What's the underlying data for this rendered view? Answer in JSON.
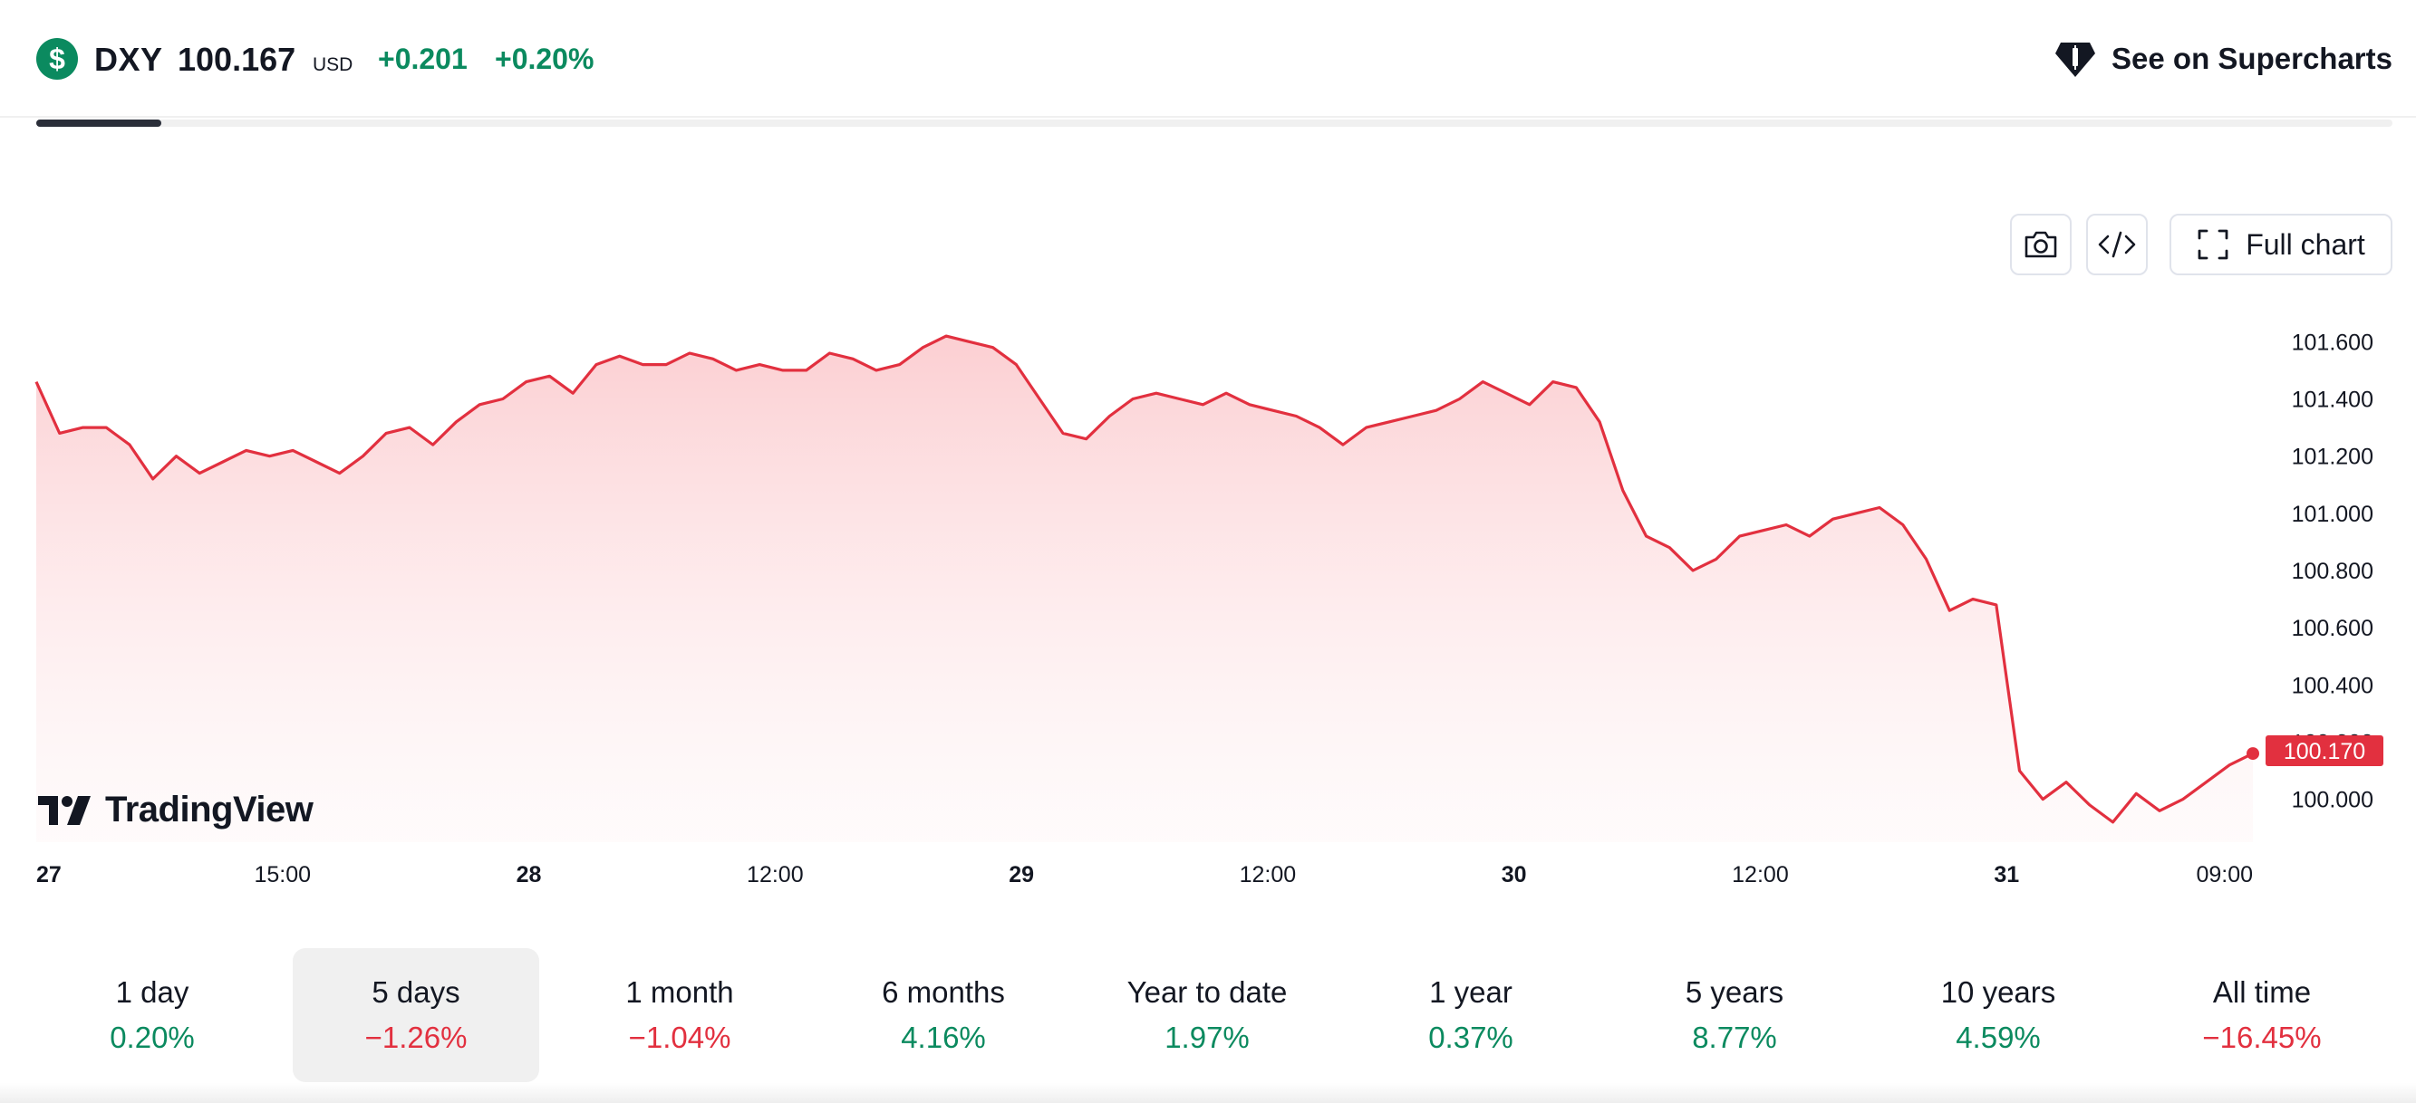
{
  "header": {
    "symbol_icon_glyph": "$",
    "symbol": "DXY",
    "price": "100.167",
    "currency": "USD",
    "change": "+0.201",
    "change_percent": "+0.20%",
    "supercharts_label": "See on Supercharts",
    "accent_color": "#0b8a5f"
  },
  "progress": {
    "fraction": 0.053
  },
  "toolbar": {
    "screenshot_icon": "camera-icon",
    "embed_icon": "code-icon",
    "full_chart_label": "Full chart",
    "full_chart_icon": "fullscreen-icon"
  },
  "brand": {
    "logo_text": "TradingView"
  },
  "chart_data": {
    "type": "area",
    "line_color": "#e2303f",
    "ylim": [
      99.85,
      101.75
    ],
    "y_ticks": [
      "101.600",
      "101.400",
      "101.200",
      "101.000",
      "100.800",
      "100.600",
      "100.400",
      "100.200",
      "100.000"
    ],
    "x_ticks": [
      {
        "label": "27",
        "bold": true
      },
      {
        "label": "15:00",
        "bold": false
      },
      {
        "label": "28",
        "bold": true
      },
      {
        "label": "12:00",
        "bold": false
      },
      {
        "label": "29",
        "bold": true
      },
      {
        "label": "12:00",
        "bold": false
      },
      {
        "label": "30",
        "bold": true
      },
      {
        "label": "12:00",
        "bold": false
      },
      {
        "label": "31",
        "bold": true
      },
      {
        "label": "09:00",
        "bold": false
      }
    ],
    "last_value_label": "100.170",
    "last_value": 100.17,
    "values": [
      101.46,
      101.28,
      101.3,
      101.3,
      101.24,
      101.12,
      101.2,
      101.14,
      101.18,
      101.22,
      101.2,
      101.22,
      101.18,
      101.14,
      101.2,
      101.28,
      101.3,
      101.24,
      101.32,
      101.38,
      101.4,
      101.46,
      101.48,
      101.42,
      101.52,
      101.55,
      101.52,
      101.52,
      101.56,
      101.54,
      101.5,
      101.52,
      101.5,
      101.5,
      101.56,
      101.54,
      101.5,
      101.52,
      101.58,
      101.62,
      101.6,
      101.58,
      101.52,
      101.4,
      101.28,
      101.26,
      101.34,
      101.4,
      101.42,
      101.4,
      101.38,
      101.42,
      101.38,
      101.36,
      101.34,
      101.3,
      101.24,
      101.3,
      101.32,
      101.34,
      101.36,
      101.4,
      101.46,
      101.42,
      101.38,
      101.46,
      101.44,
      101.32,
      101.08,
      100.92,
      100.88,
      100.8,
      100.84,
      100.92,
      100.94,
      100.96,
      100.92,
      100.98,
      101.0,
      101.02,
      100.96,
      100.84,
      100.66,
      100.7,
      100.68,
      100.1,
      100.0,
      100.06,
      99.98,
      99.92,
      100.02,
      99.96,
      100.0,
      100.06,
      100.12,
      100.16
    ]
  },
  "periods": [
    {
      "label": "1 day",
      "value": "0.20%",
      "sign": "pos",
      "active": false
    },
    {
      "label": "5 days",
      "value": "−1.26%",
      "sign": "neg",
      "active": true
    },
    {
      "label": "1 month",
      "value": "−1.04%",
      "sign": "neg",
      "active": false
    },
    {
      "label": "6 months",
      "value": "4.16%",
      "sign": "pos",
      "active": false
    },
    {
      "label": "Year to date",
      "value": "1.97%",
      "sign": "pos",
      "active": false
    },
    {
      "label": "1 year",
      "value": "0.37%",
      "sign": "pos",
      "active": false
    },
    {
      "label": "5 years",
      "value": "8.77%",
      "sign": "pos",
      "active": false
    },
    {
      "label": "10 years",
      "value": "4.59%",
      "sign": "pos",
      "active": false
    },
    {
      "label": "All time",
      "value": "−16.45%",
      "sign": "neg",
      "active": false
    }
  ]
}
